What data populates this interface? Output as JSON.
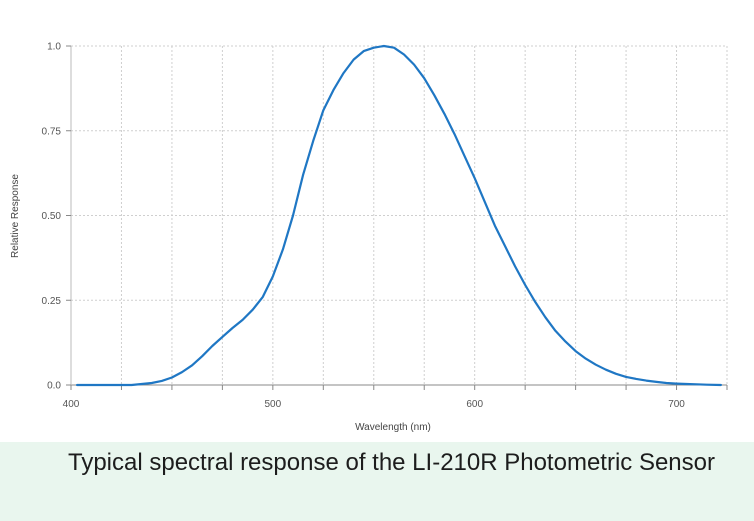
{
  "caption": "Typical spectral response of the LI-210R Photometric Sensor",
  "chart_data": {
    "type": "line",
    "title": "",
    "xlabel": "Wavelength (nm)",
    "ylabel": "Relative Response",
    "xlim": [
      400,
      725
    ],
    "ylim": [
      0,
      1.0
    ],
    "x_ticks": [
      400,
      500,
      600,
      700
    ],
    "x_tick_labels": [
      "400",
      "500",
      "600",
      "700"
    ],
    "y_ticks": [
      0,
      0.25,
      0.5,
      0.75,
      1.0
    ],
    "y_tick_labels": [
      "0.0",
      "0.25",
      "0.50",
      "0.75",
      "1.0"
    ],
    "grid": true,
    "line_color": "#1f77c4",
    "series": [
      {
        "x": [
          403,
          410,
          420,
          430,
          440,
          445,
          450,
          455,
          460,
          465,
          470,
          475,
          480,
          485,
          490,
          495,
          500,
          505,
          510,
          515,
          520,
          525,
          530,
          535,
          540,
          545,
          550,
          555,
          560,
          565,
          570,
          575,
          580,
          585,
          590,
          595,
          600,
          605,
          610,
          615,
          620,
          625,
          630,
          635,
          640,
          645,
          650,
          655,
          660,
          665,
          670,
          675,
          680,
          685,
          690,
          695,
          700,
          705,
          710,
          715,
          722
        ],
        "y": [
          0.0,
          0.0,
          0.0,
          0.0,
          0.006,
          0.012,
          0.022,
          0.038,
          0.058,
          0.085,
          0.115,
          0.142,
          0.168,
          0.192,
          0.222,
          0.26,
          0.32,
          0.4,
          0.5,
          0.62,
          0.72,
          0.81,
          0.87,
          0.92,
          0.96,
          0.985,
          0.995,
          1.0,
          0.995,
          0.975,
          0.945,
          0.905,
          0.855,
          0.8,
          0.74,
          0.675,
          0.61,
          0.54,
          0.47,
          0.41,
          0.35,
          0.295,
          0.245,
          0.2,
          0.16,
          0.128,
          0.1,
          0.078,
          0.06,
          0.045,
          0.033,
          0.024,
          0.018,
          0.013,
          0.009,
          0.006,
          0.004,
          0.003,
          0.002,
          0.001,
          0.0
        ]
      }
    ]
  }
}
